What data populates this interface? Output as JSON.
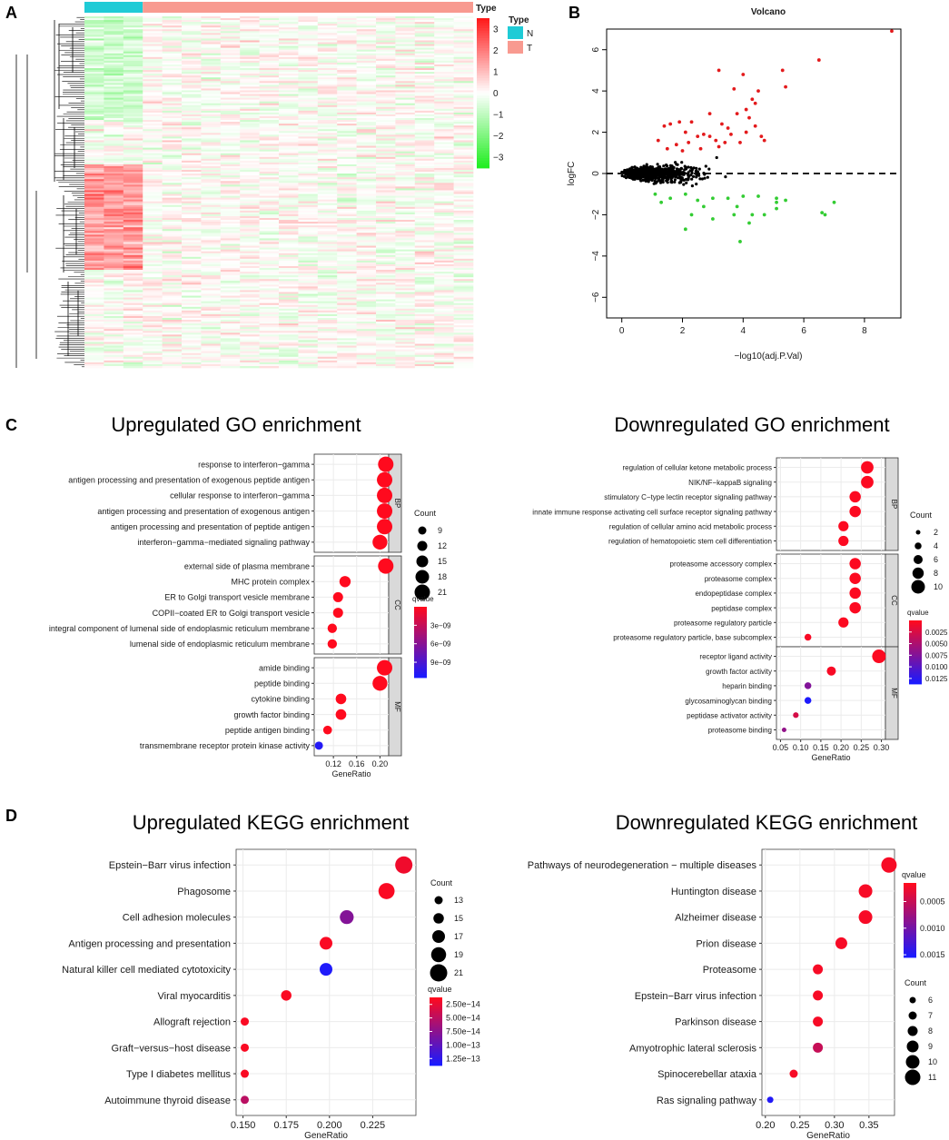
{
  "panels": {
    "a": "A",
    "b": "B",
    "c": "C",
    "d": "D"
  },
  "chart_data": [
    {
      "id": "heatmap",
      "type": "heatmap",
      "type_bar_label": "Type",
      "legend_title": "Type",
      "groups": [
        {
          "name": "N",
          "color": "#1fcbd6",
          "samples": 3
        },
        {
          "name": "T",
          "color": "#f89a90",
          "samples": 17
        }
      ],
      "color_scale": {
        "ticks": [
          3,
          2,
          1,
          0,
          -1,
          -2,
          -3
        ],
        "low": "#22ee22",
        "mid": "#ffffff",
        "high": "#ff1a1a"
      }
    },
    {
      "id": "volcano",
      "type": "scatter",
      "title": "Volcano",
      "xlabel": "-log10(adj.P.Val)",
      "ylabel": "logFC",
      "xlim": [
        -0.5,
        9.2
      ],
      "ylim": [
        -7,
        7
      ],
      "xticks": [
        0,
        2,
        4,
        6,
        8
      ],
      "yticks": [
        -6,
        -4,
        -2,
        0,
        2,
        4,
        6
      ],
      "colors": {
        "up": "#e31a1c",
        "down": "#33cc33",
        "ns": "#000000"
      },
      "up_points": [
        [
          3.2,
          5.0
        ],
        [
          3.7,
          4.1
        ],
        [
          4.0,
          4.8
        ],
        [
          4.3,
          3.6
        ],
        [
          4.5,
          4.0
        ],
        [
          5.3,
          5.0
        ],
        [
          5.4,
          4.2
        ],
        [
          6.5,
          5.5
        ],
        [
          8.9,
          6.9
        ],
        [
          4.1,
          3.1
        ],
        [
          4.4,
          3.4
        ],
        [
          4.2,
          2.7
        ],
        [
          3.8,
          2.9
        ],
        [
          1.4,
          2.3
        ],
        [
          1.6,
          2.4
        ],
        [
          1.9,
          2.5
        ],
        [
          2.3,
          2.5
        ],
        [
          2.9,
          2.9
        ],
        [
          3.3,
          2.4
        ],
        [
          3.5,
          2.2
        ],
        [
          3.6,
          1.9
        ],
        [
          4.1,
          2.0
        ],
        [
          4.4,
          2.3
        ],
        [
          4.6,
          1.8
        ],
        [
          4.7,
          1.6
        ],
        [
          2.1,
          2.0
        ],
        [
          2.5,
          1.8
        ],
        [
          2.7,
          1.9
        ],
        [
          2.2,
          1.5
        ],
        [
          3.1,
          1.6
        ],
        [
          3.4,
          1.5
        ],
        [
          3.9,
          1.5
        ],
        [
          1.2,
          1.6
        ],
        [
          1.8,
          1.4
        ],
        [
          2.9,
          1.8
        ],
        [
          1.5,
          1.2
        ],
        [
          2.0,
          1.1
        ],
        [
          2.6,
          1.2
        ],
        [
          3.2,
          1.3
        ]
      ],
      "down_points": [
        [
          1.1,
          -1.0
        ],
        [
          1.6,
          -1.2
        ],
        [
          2.1,
          -1.0
        ],
        [
          2.5,
          -1.3
        ],
        [
          3.0,
          -1.2
        ],
        [
          3.5,
          -1.2
        ],
        [
          4.0,
          -1.1
        ],
        [
          4.5,
          -1.1
        ],
        [
          5.1,
          -1.2
        ],
        [
          5.4,
          -1.3
        ],
        [
          5.1,
          -1.4
        ],
        [
          2.3,
          -2.0
        ],
        [
          3.0,
          -2.2
        ],
        [
          3.7,
          -2.0
        ],
        [
          3.8,
          -1.6
        ],
        [
          4.3,
          -2.0
        ],
        [
          4.7,
          -2.0
        ],
        [
          5.1,
          -1.7
        ],
        [
          6.6,
          -1.9
        ],
        [
          6.7,
          -2.0
        ],
        [
          7.0,
          -1.4
        ],
        [
          2.1,
          -2.7
        ],
        [
          3.9,
          -3.3
        ],
        [
          1.3,
          -1.4
        ],
        [
          2.7,
          -1.6
        ],
        [
          4.2,
          -2.4
        ]
      ],
      "ns_count": 700
    },
    {
      "id": "go_up",
      "type": "dotplot",
      "title": "Upregulated GO enrichment",
      "xlabel": "GeneRatio",
      "xlim": [
        0.087,
        0.215
      ],
      "xticks": [
        0.12,
        0.16,
        0.2
      ],
      "xtick_labels": [
        "0.12",
        "0.16",
        "0.20"
      ],
      "categories": [
        {
          "name": "BP",
          "terms": [
            {
              "label": "response to interferon−gamma",
              "ratio": 0.21,
              "count": 21,
              "qvalue": 5e-12
            },
            {
              "label": "antigen processing and presentation of exogenous peptide antigen",
              "ratio": 0.208,
              "count": 21,
              "qvalue": 5e-12
            },
            {
              "label": "cellular response to interferon−gamma",
              "ratio": 0.208,
              "count": 21,
              "qvalue": 5e-12
            },
            {
              "label": "antigen processing and presentation of exogenous antigen",
              "ratio": 0.208,
              "count": 21,
              "qvalue": 5e-12
            },
            {
              "label": "antigen processing and presentation of peptide antigen",
              "ratio": 0.208,
              "count": 21,
              "qvalue": 5e-12
            },
            {
              "label": "interferon−gamma−mediated signaling pathway",
              "ratio": 0.2,
              "count": 20,
              "qvalue": 5e-12
            }
          ]
        },
        {
          "name": "CC",
          "terms": [
            {
              "label": "external side of plasma membrane",
              "ratio": 0.21,
              "count": 21,
              "qvalue": 5e-12
            },
            {
              "label": "MHC protein complex",
              "ratio": 0.14,
              "count": 14,
              "qvalue": 5e-12
            },
            {
              "label": "ER to Golgi transport vesicle membrane",
              "ratio": 0.128,
              "count": 12,
              "qvalue": 5e-12
            },
            {
              "label": "COPII−coated ER to Golgi transport vesicle",
              "ratio": 0.128,
              "count": 12,
              "qvalue": 5e-12
            },
            {
              "label": "integral component of lumenal side of endoplasmic reticulum membrane",
              "ratio": 0.118,
              "count": 11,
              "qvalue": 5e-12
            },
            {
              "label": "lumenal side of endoplasmic reticulum membrane",
              "ratio": 0.118,
              "count": 11,
              "qvalue": 5e-12
            }
          ]
        },
        {
          "name": "MF",
          "terms": [
            {
              "label": "amide binding",
              "ratio": 0.208,
              "count": 21,
              "qvalue": 5e-12
            },
            {
              "label": "peptide binding",
              "ratio": 0.2,
              "count": 20,
              "qvalue": 5e-12
            },
            {
              "label": "cytokine binding",
              "ratio": 0.133,
              "count": 13,
              "qvalue": 5e-12
            },
            {
              "label": "growth factor binding",
              "ratio": 0.133,
              "count": 13,
              "qvalue": 5e-12
            },
            {
              "label": "peptide antigen binding",
              "ratio": 0.11,
              "count": 10,
              "qvalue": 5e-12
            },
            {
              "label": "transmembrane receptor protein kinase activity",
              "ratio": 0.095,
              "count": 9,
              "qvalue": 1.1e-08
            }
          ]
        }
      ],
      "size_legend": {
        "title": "Count",
        "values": [
          9,
          12,
          15,
          18,
          21
        ]
      },
      "color_legend": {
        "title": "qvalue",
        "ticks": [
          3e-09,
          6e-09,
          9e-09
        ],
        "tick_labels": [
          "3e−09",
          "6e−09",
          "9e−09"
        ],
        "range": [
          0,
          1.15e-08
        ]
      }
    },
    {
      "id": "go_down",
      "type": "dotplot",
      "title": "Downregulated GO enrichment",
      "xlabel": "GeneRatio",
      "xlim": [
        0.04,
        0.31
      ],
      "xticks": [
        0.05,
        0.1,
        0.15,
        0.2,
        0.25,
        0.3
      ],
      "xtick_labels": [
        "0.05",
        "0.10",
        "0.15",
        "0.20",
        "0.25",
        "0.30"
      ],
      "categories": [
        {
          "name": "BP",
          "terms": [
            {
              "label": "regulation of cellular ketone metabolic process",
              "ratio": 0.265,
              "count": 9,
              "qvalue": 0.0002
            },
            {
              "label": "NIK/NF−kappaB signaling",
              "ratio": 0.265,
              "count": 9,
              "qvalue": 0.0002
            },
            {
              "label": "stimulatory C−type lectin receptor signaling pathway",
              "ratio": 0.235,
              "count": 8,
              "qvalue": 0.0002
            },
            {
              "label": "innate immune response activating cell surface receptor signaling pathway",
              "ratio": 0.235,
              "count": 8,
              "qvalue": 0.0002
            },
            {
              "label": "regulation of cellular amino acid metabolic process",
              "ratio": 0.206,
              "count": 7,
              "qvalue": 0.0002
            },
            {
              "label": "regulation of hematopoietic stem cell differentiation",
              "ratio": 0.206,
              "count": 7,
              "qvalue": 0.0002
            }
          ]
        },
        {
          "name": "CC",
          "terms": [
            {
              "label": "proteasome accessory complex",
              "ratio": 0.235,
              "count": 8,
              "qvalue": 0.0002
            },
            {
              "label": "proteasome complex",
              "ratio": 0.235,
              "count": 8,
              "qvalue": 0.0002
            },
            {
              "label": "endopeptidase complex",
              "ratio": 0.235,
              "count": 8,
              "qvalue": 0.0002
            },
            {
              "label": "peptidase complex",
              "ratio": 0.235,
              "count": 8,
              "qvalue": 0.0002
            },
            {
              "label": "proteasome regulatory particle",
              "ratio": 0.206,
              "count": 7,
              "qvalue": 0.0002
            },
            {
              "label": "proteasome regulatory particle, base subcomplex",
              "ratio": 0.118,
              "count": 4,
              "qvalue": 0.0004
            }
          ]
        },
        {
          "name": "MF",
          "terms": [
            {
              "label": "receptor ligand activity",
              "ratio": 0.294,
              "count": 10,
              "qvalue": 0.0002
            },
            {
              "label": "growth factor activity",
              "ratio": 0.176,
              "count": 6,
              "qvalue": 0.0004
            },
            {
              "label": "heparin binding",
              "ratio": 0.118,
              "count": 4,
              "qvalue": 0.0075
            },
            {
              "label": "glycosaminoglycan binding",
              "ratio": 0.118,
              "count": 4,
              "qvalue": 0.0135
            },
            {
              "label": "peptidase activator activity",
              "ratio": 0.088,
              "count": 3,
              "qvalue": 0.0025
            },
            {
              "label": "proteasome binding",
              "ratio": 0.059,
              "count": 2,
              "qvalue": 0.0065
            }
          ]
        }
      ],
      "size_legend": {
        "title": "Count",
        "values": [
          2,
          4,
          6,
          8,
          10
        ]
      },
      "color_legend": {
        "title": "qvalue",
        "ticks": [
          0.0025,
          0.005,
          0.0075,
          0.01,
          0.0125
        ],
        "tick_labels": [
          "0.0025",
          "0.0050",
          "0.0075",
          "0.0100",
          "0.0125"
        ],
        "range": [
          0,
          0.0137
        ]
      }
    },
    {
      "id": "kegg_up",
      "type": "dotplot",
      "title": "Upregulated KEGG enrichment",
      "xlabel": "GeneRatio",
      "xlim": [
        0.146,
        0.25
      ],
      "xticks": [
        0.15,
        0.175,
        0.2,
        0.225
      ],
      "xtick_labels": [
        "0.150",
        "0.175",
        "0.200",
        "0.225"
      ],
      "terms": [
        {
          "label": "Epstein−Barr virus infection",
          "ratio": 0.243,
          "count": 21,
          "qvalue": 2e-14
        },
        {
          "label": "Phagosome",
          "ratio": 0.233,
          "count": 20,
          "qvalue": 1.5e-14
        },
        {
          "label": "Cell adhesion molecules",
          "ratio": 0.21,
          "count": 18,
          "qvalue": 8e-14
        },
        {
          "label": "Antigen processing and presentation",
          "ratio": 0.198,
          "count": 17,
          "qvalue": 1.5e-14
        },
        {
          "label": "Natural killer cell mediated cytotoxicity",
          "ratio": 0.198,
          "count": 17,
          "qvalue": 1.35e-13
        },
        {
          "label": "Viral myocarditis",
          "ratio": 0.175,
          "count": 15,
          "qvalue": 1.5e-14
        },
        {
          "label": "Allograft rejection",
          "ratio": 0.151,
          "count": 13,
          "qvalue": 1.5e-14
        },
        {
          "label": "Graft−versus−host disease",
          "ratio": 0.151,
          "count": 13,
          "qvalue": 1.5e-14
        },
        {
          "label": "Type I diabetes mellitus",
          "ratio": 0.151,
          "count": 13,
          "qvalue": 1.5e-14
        },
        {
          "label": "Autoimmune thyroid disease",
          "ratio": 0.151,
          "count": 13,
          "qvalue": 5e-14
        }
      ],
      "size_legend": {
        "title": "Count",
        "values": [
          13,
          15,
          17,
          19,
          21
        ]
      },
      "color_legend": {
        "title": "qvalue",
        "ticks": [
          2.5e-14,
          5e-14,
          7.5e-14,
          1e-13,
          1.25e-13
        ],
        "tick_labels": [
          "2.50e−14",
          "5.00e−14",
          "7.50e−14",
          "1.00e−13",
          "1.25e−13"
        ],
        "range": [
          1.2e-14,
          1.38e-13
        ]
      }
    },
    {
      "id": "kegg_down",
      "type": "dotplot",
      "title": "Downregulated KEGG enrichment",
      "xlabel": "GeneRatio",
      "xlim": [
        0.195,
        0.387
      ],
      "xticks": [
        0.2,
        0.25,
        0.3,
        0.35
      ],
      "xtick_labels": [
        "0.20",
        "0.25",
        "0.30",
        "0.35"
      ],
      "terms": [
        {
          "label": "Pathways of neurodegeneration − multiple diseases",
          "ratio": 0.379,
          "count": 11,
          "qvalue": 0.0002
        },
        {
          "label": "Huntington disease",
          "ratio": 0.345,
          "count": 10,
          "qvalue": 0.0002
        },
        {
          "label": "Alzheimer disease",
          "ratio": 0.345,
          "count": 10,
          "qvalue": 0.0002
        },
        {
          "label": "Prion disease",
          "ratio": 0.31,
          "count": 9,
          "qvalue": 0.0002
        },
        {
          "label": "Proteasome",
          "ratio": 0.276,
          "count": 8,
          "qvalue": 0.0002
        },
        {
          "label": "Epstein−Barr virus infection",
          "ratio": 0.276,
          "count": 8,
          "qvalue": 0.0002
        },
        {
          "label": "Parkinson disease",
          "ratio": 0.276,
          "count": 8,
          "qvalue": 0.0002
        },
        {
          "label": "Amyotrophic lateral sclerosis",
          "ratio": 0.276,
          "count": 8,
          "qvalue": 0.0005
        },
        {
          "label": "Spinocerebellar ataxia",
          "ratio": 0.241,
          "count": 7,
          "qvalue": 0.0002
        },
        {
          "label": "Ras signaling pathway",
          "ratio": 0.207,
          "count": 6,
          "qvalue": 0.0015
        }
      ],
      "size_legend": {
        "title": "Count",
        "values": [
          6,
          7,
          8,
          9,
          10,
          11
        ]
      },
      "color_legend": {
        "title": "qvalue",
        "ticks": [
          0.0005,
          0.001,
          0.0015
        ],
        "tick_labels": [
          "0.0005",
          "0.0010",
          "0.0015"
        ],
        "range": [
          0.00015,
          0.00155
        ]
      }
    }
  ]
}
